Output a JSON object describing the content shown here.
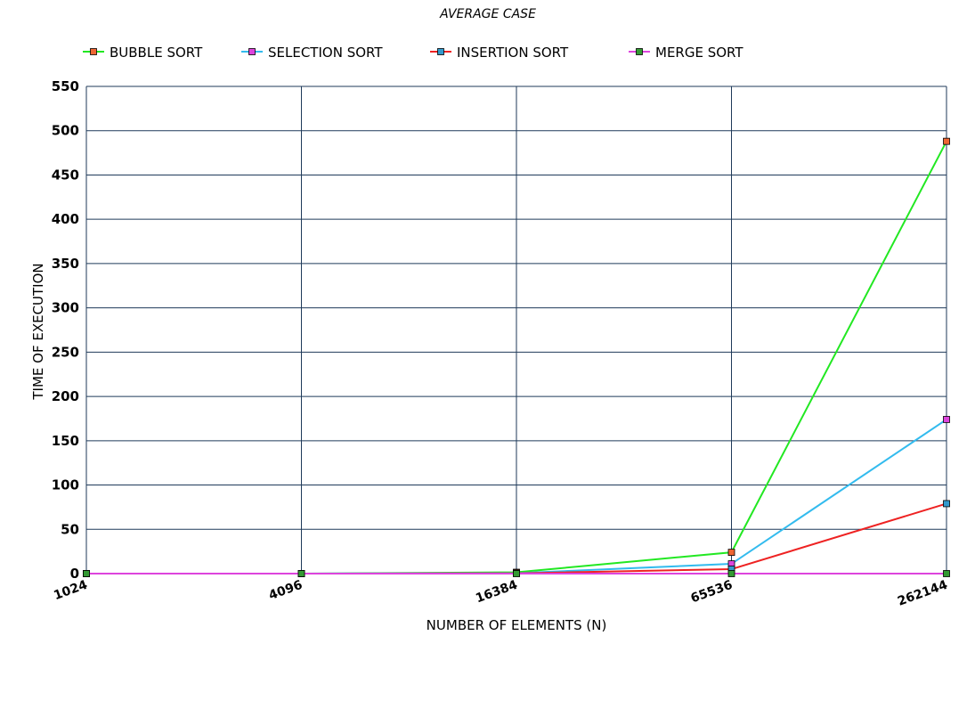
{
  "chart_data": {
    "type": "line",
    "title": "AVERAGE CASE",
    "xlabel": "NUMBER OF ELEMENTS (N)",
    "ylabel": "TIME OF EXECUTION",
    "x": [
      "1024",
      "4096",
      "16384",
      "65536",
      "262144"
    ],
    "ylim": [
      0,
      550
    ],
    "yticks": [
      0,
      50,
      100,
      150,
      200,
      250,
      300,
      350,
      400,
      450,
      500,
      550
    ],
    "grid": true,
    "legend_position": "top",
    "series": [
      {
        "name": "BUBBLE SORT",
        "line_color": "#22e822",
        "marker_color": "#ee6633",
        "values": [
          0,
          0,
          1.5,
          24,
          488
        ]
      },
      {
        "name": "SELECTION SORT",
        "line_color": "#33bbee",
        "marker_color": "#dd44dd",
        "values": [
          0,
          0,
          0.5,
          11,
          174
        ]
      },
      {
        "name": "INSERTION SORT",
        "line_color": "#ee2222",
        "marker_color": "#3399cc",
        "values": [
          0,
          0,
          0.3,
          5,
          79
        ]
      },
      {
        "name": "MERGE SORT",
        "line_color": "#dd44dd",
        "marker_color": "#339933",
        "values": [
          0,
          0,
          0,
          0,
          0
        ]
      }
    ]
  }
}
